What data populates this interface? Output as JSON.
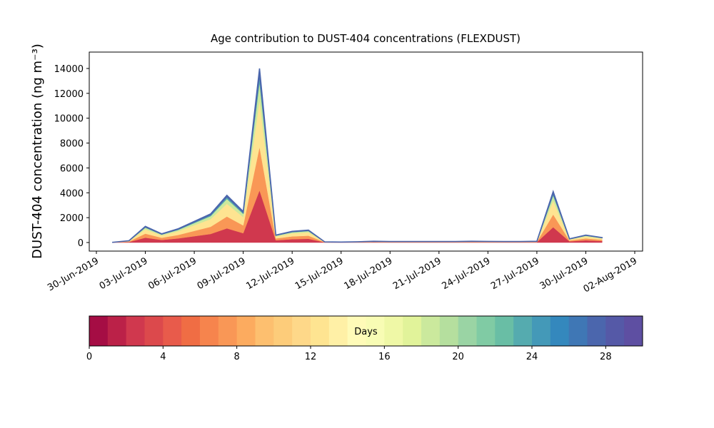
{
  "chart_data": {
    "type": "stacked-area",
    "title": "Age contribution to DUST-404 concentrations (FLEXDUST)",
    "y_label": "DUST-404 concentration (ng m⁻³)",
    "x": [
      "2019-07-01",
      "2019-07-02",
      "2019-07-03",
      "2019-07-04",
      "2019-07-05",
      "2019-07-06",
      "2019-07-07",
      "2019-07-08",
      "2019-07-09",
      "2019-07-10",
      "2019-07-11",
      "2019-07-12",
      "2019-07-13",
      "2019-07-14",
      "2019-07-15",
      "2019-07-16",
      "2019-07-17",
      "2019-07-18",
      "2019-07-19",
      "2019-07-20",
      "2019-07-21",
      "2019-07-22",
      "2019-07-23",
      "2019-07-24",
      "2019-07-25",
      "2019-07-26",
      "2019-07-27",
      "2019-07-28",
      "2019-07-29",
      "2019-07-30",
      "2019-07-31"
    ],
    "series": [
      {
        "color": "#d0384e",
        "values": [
          6,
          45,
          390,
          210,
          330,
          510,
          690,
          1140,
          750,
          4200,
          180,
          270,
          300,
          15,
          12,
          18,
          30,
          24,
          24,
          24,
          24,
          24,
          30,
          27,
          24,
          24,
          30,
          1230,
          90,
          180,
          120
        ]
      },
      {
        "color": "#f99756",
        "values": [
          5,
          38,
          325,
          175,
          275,
          425,
          575,
          950,
          625,
          3500,
          150,
          225,
          250,
          13,
          10,
          15,
          25,
          20,
          20,
          20,
          20,
          20,
          25,
          23,
          20,
          20,
          25,
          1025,
          75,
          150,
          100
        ]
      },
      {
        "color": "#fee491",
        "values": [
          5,
          40,
          351,
          189,
          297,
          459,
          621,
          1026,
          675,
          3780,
          162,
          243,
          270,
          13,
          11,
          16,
          27,
          22,
          22,
          22,
          22,
          22,
          27,
          24,
          22,
          22,
          27,
          1107,
          81,
          162,
          108
        ]
      },
      {
        "color": "#cbe99d",
        "values": [
          2,
          15,
          130,
          70,
          110,
          170,
          230,
          380,
          250,
          1400,
          60,
          90,
          100,
          5,
          4,
          6,
          10,
          8,
          8,
          8,
          8,
          8,
          10,
          9,
          8,
          8,
          10,
          410,
          30,
          60,
          40
        ]
      },
      {
        "color": "#55abaf",
        "values": [
          1,
          8,
          65,
          35,
          55,
          85,
          115,
          190,
          125,
          700,
          30,
          45,
          50,
          3,
          2,
          3,
          5,
          4,
          4,
          4,
          4,
          4,
          5,
          4,
          4,
          4,
          5,
          205,
          15,
          30,
          20
        ]
      },
      {
        "color": "#4b66ad",
        "values": [
          1,
          4,
          39,
          21,
          33,
          51,
          69,
          114,
          75,
          420,
          18,
          27,
          30,
          1,
          1,
          2,
          3,
          2,
          2,
          2,
          2,
          2,
          3,
          3,
          2,
          2,
          3,
          123,
          9,
          18,
          12
        ]
      }
    ],
    "xlim": [
      "2019-06-30",
      "2019-08-02"
    ],
    "xticks": [
      {
        "value": "2019-06-30",
        "label": "30-Jun-2019"
      },
      {
        "value": "2019-07-03",
        "label": "03-Jul-2019"
      },
      {
        "value": "2019-07-06",
        "label": "06-Jul-2019"
      },
      {
        "value": "2019-07-09",
        "label": "09-Jul-2019"
      },
      {
        "value": "2019-07-12",
        "label": "12-Jul-2019"
      },
      {
        "value": "2019-07-15",
        "label": "15-Jul-2019"
      },
      {
        "value": "2019-07-18",
        "label": "18-Jul-2019"
      },
      {
        "value": "2019-07-21",
        "label": "21-Jul-2019"
      },
      {
        "value": "2019-07-24",
        "label": "24-Jul-2019"
      },
      {
        "value": "2019-07-27",
        "label": "27-Jul-2019"
      },
      {
        "value": "2019-07-30",
        "label": "30-Jul-2019"
      },
      {
        "value": "2019-08-02",
        "label": "02-Aug-2019"
      }
    ],
    "ylim": [
      -690,
      15320
    ],
    "yticks": [
      0,
      2000,
      4000,
      6000,
      8000,
      10000,
      12000,
      14000
    ],
    "colorbar": {
      "label": "Days",
      "lim": [
        0,
        30
      ],
      "ticks": [
        0,
        4,
        8,
        12,
        16,
        20,
        24,
        28
      ],
      "colors": [
        "#a50d44",
        "#bb2148",
        "#d0384e",
        "#dc494c",
        "#e85b4b",
        "#f06d44",
        "#f6844d",
        "#f99756",
        "#fcab5f",
        "#fdbf6f",
        "#fdcc7a",
        "#fed889",
        "#fee491",
        "#fff0a6",
        "#fffbb8",
        "#f8fcb4",
        "#eff8a6",
        "#e1f39a",
        "#cbe99d",
        "#b5df9e",
        "#9ad4a4",
        "#80cba4",
        "#69bea5",
        "#55abaf",
        "#4499b8",
        "#3488bd",
        "#3f77b5",
        "#4b66ad",
        "#5559a7",
        "#5e4fa2"
      ]
    }
  }
}
